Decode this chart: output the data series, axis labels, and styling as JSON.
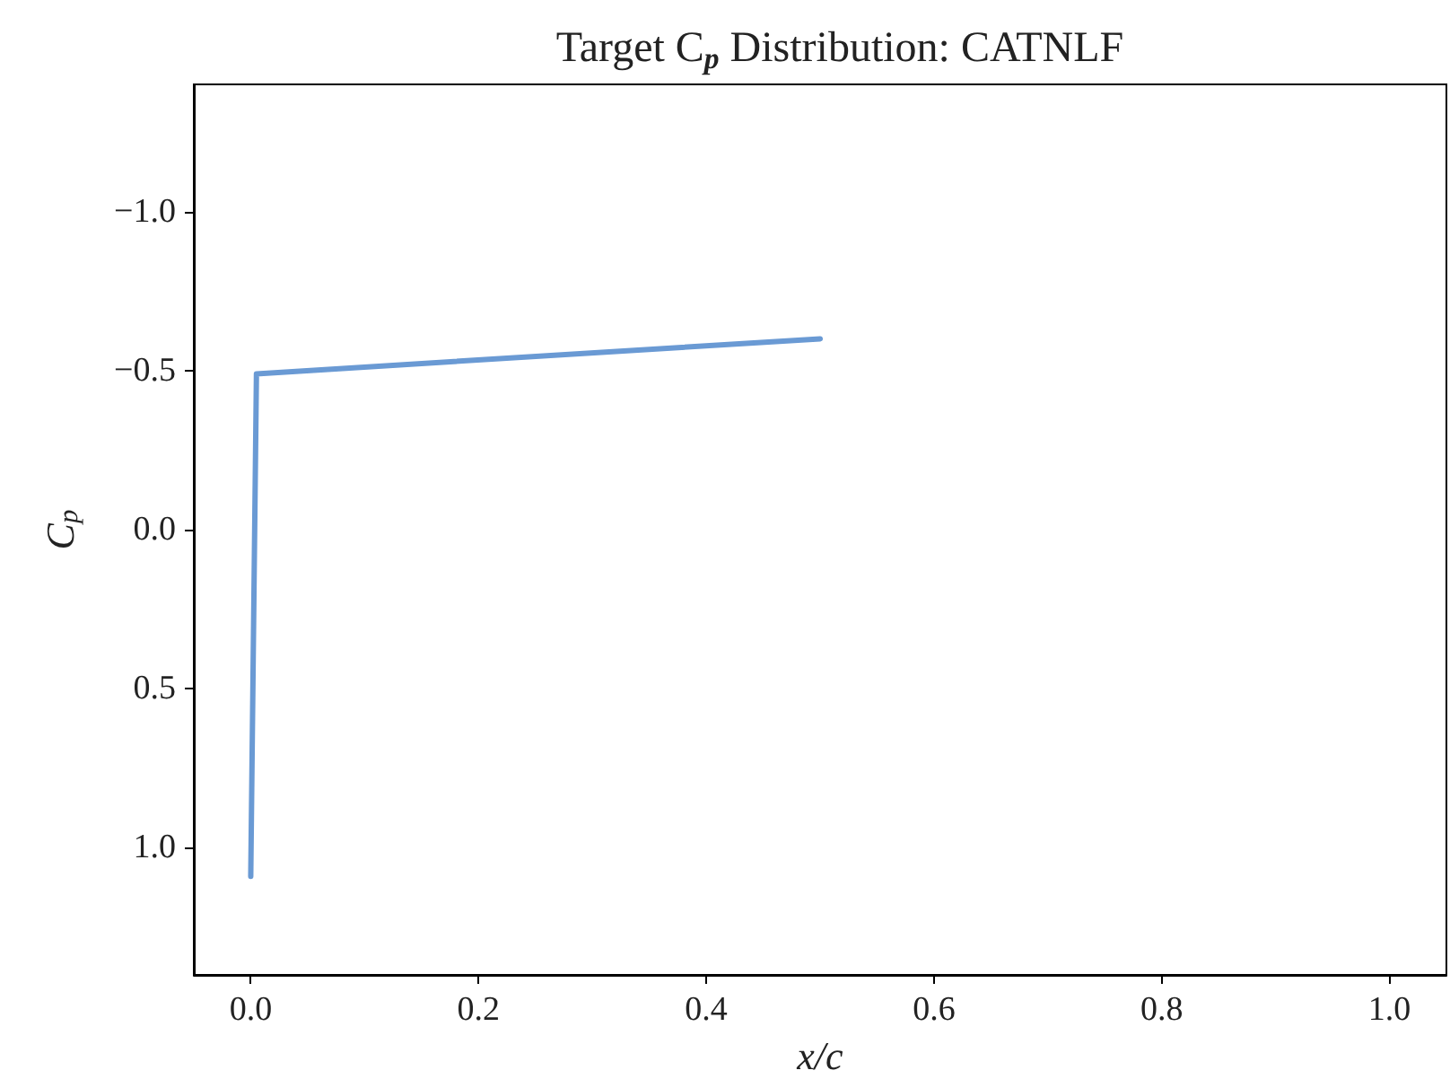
{
  "chart_data": {
    "type": "line",
    "title": "Target C$_{p}$ Distribution: CATNLF",
    "xlabel": "x/c",
    "ylabel": "C$_{p}$",
    "x": [
      0.0,
      0.005,
      0.5
    ],
    "series": [
      {
        "color": "#6a9ad4",
        "values": [
          1.09,
          -0.49,
          -0.6
        ]
      }
    ],
    "xlim": [
      -0.05,
      1.05
    ],
    "ylim": [
      1.4,
      -1.4
    ],
    "xticks": [
      {
        "value": 0,
        "label": "0.0"
      },
      {
        "value": 0.2,
        "label": "0.2"
      },
      {
        "value": 0.4,
        "label": "0.4"
      },
      {
        "value": 0.6,
        "label": "0.6"
      },
      {
        "value": 0.8,
        "label": "0.8"
      },
      {
        "value": 1,
        "label": "1.0"
      }
    ],
    "yticks": [
      {
        "value": -1,
        "label": "−1.0"
      },
      {
        "value": -0.5,
        "label": "−0.5"
      },
      {
        "value": 0,
        "label": "0.0"
      },
      {
        "value": 0.5,
        "label": "0.5"
      },
      {
        "value": 1,
        "label": "1.0"
      }
    ],
    "grid": false,
    "marker": "none",
    "line_style": "solid"
  }
}
